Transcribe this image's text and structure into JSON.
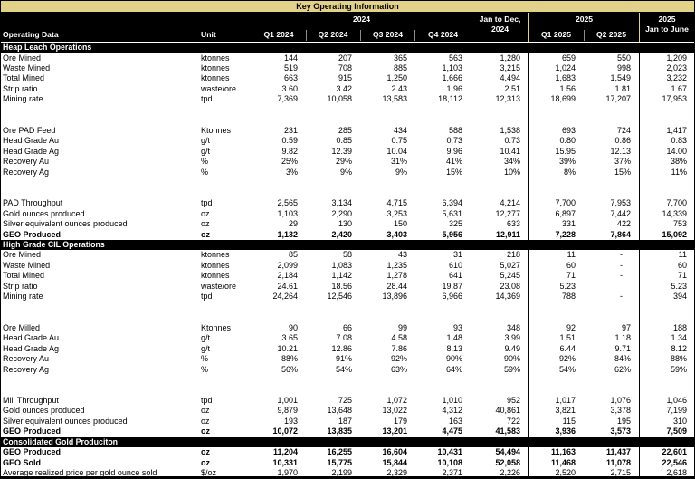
{
  "title": "Key Operating Information",
  "colors": {
    "accent_tan": "#e2d189",
    "header_bg": "#000000",
    "header_text": "#ffffff",
    "body_text": "#000000"
  },
  "header": {
    "operating_data_label": "Operating Data",
    "unit_label": "Unit",
    "group_2024": "2024",
    "group_2025": "2025",
    "jan_to_dec_lines": [
      "Jan to Dec,",
      "2024"
    ],
    "jan_to_june_lines": [
      "2025",
      "Jan to June"
    ],
    "quarters_2024": [
      "Q1 2024",
      "Q2 2024",
      "Q3 2024",
      "Q4 2024"
    ],
    "quarters_2025": [
      "Q1 2025",
      "Q2 2025"
    ]
  },
  "columns": [
    "Q1 2024",
    "Q2 2024",
    "Q3 2024",
    "Q4 2024",
    "Jan to Dec, 2024",
    "Q1 2025",
    "Q2 2025",
    "2025 Jan to June"
  ],
  "sections": [
    {
      "name": "Heap Leach Operations",
      "rows": [
        {
          "label": "Ore Mined",
          "unit": "ktonnes",
          "values": [
            "144",
            "207",
            "365",
            "563",
            "1,280",
            "659",
            "550",
            "1,209"
          ]
        },
        {
          "label": "Waste Mined",
          "unit": "ktonnes",
          "values": [
            "519",
            "708",
            "885",
            "1,103",
            "3,215",
            "1,024",
            "998",
            "2,023"
          ]
        },
        {
          "label": "Total Mined",
          "unit": "ktonnes",
          "values": [
            "663",
            "915",
            "1,250",
            "1,666",
            "4,494",
            "1,683",
            "1,549",
            "3,232"
          ]
        },
        {
          "label": "Strip ratio",
          "unit": "waste/ore",
          "values": [
            "3.60",
            "3.42",
            "2.43",
            "1.96",
            "2.51",
            "1.56",
            "1.81",
            "1.67"
          ]
        },
        {
          "label": "Mining rate",
          "unit": "tpd",
          "values": [
            "7,369",
            "10,058",
            "13,583",
            "18,112",
            "12,313",
            "18,699",
            "17,207",
            "17,953"
          ]
        },
        {
          "blank": true
        },
        {
          "blank": true
        },
        {
          "label": "Ore PAD Feed",
          "unit": "Ktonnes",
          "values": [
            "231",
            "285",
            "434",
            "588",
            "1,538",
            "693",
            "724",
            "1,417"
          ]
        },
        {
          "label": "Head Grade Au",
          "unit": "g/t",
          "values": [
            "0.59",
            "0.85",
            "0.75",
            "0.73",
            "0.73",
            "0.80",
            "0.86",
            "0.83"
          ]
        },
        {
          "label": "Head Grade Ag",
          "unit": "g/t",
          "values": [
            "9.82",
            "12.39",
            "10.04",
            "9.96",
            "10.41",
            "15.95",
            "12.13",
            "14.00"
          ]
        },
        {
          "label": "Recovery Au",
          "unit": "%",
          "values": [
            "25%",
            "29%",
            "31%",
            "41%",
            "34%",
            "39%",
            "37%",
            "38%"
          ]
        },
        {
          "label": "Recovery Ag",
          "unit": "%",
          "values": [
            "3%",
            "9%",
            "9%",
            "15%",
            "10%",
            "8%",
            "15%",
            "11%"
          ]
        },
        {
          "blank": true
        },
        {
          "blank": true
        },
        {
          "label": "PAD Throughput",
          "unit": "tpd",
          "values": [
            "2,565",
            "3,134",
            "4,715",
            "6,394",
            "4,214",
            "7,700",
            "7,953",
            "7,700"
          ]
        },
        {
          "label": "Gold ounces produced",
          "unit": "oz",
          "values": [
            "1,103",
            "2,290",
            "3,253",
            "5,631",
            "12,277",
            "6,897",
            "7,442",
            "14,339"
          ]
        },
        {
          "label": "Silver equivalent ounces produced",
          "unit": "oz",
          "values": [
            "29",
            "130",
            "150",
            "325",
            "633",
            "331",
            "422",
            "753"
          ]
        },
        {
          "label": "GEO Produced",
          "unit": "oz",
          "bold": true,
          "values": [
            "1,132",
            "2,420",
            "3,403",
            "5,956",
            "12,911",
            "7,228",
            "7,864",
            "15,092"
          ]
        }
      ]
    },
    {
      "name": "High Grade CIL Operations",
      "rows": [
        {
          "label": "Ore Mined",
          "unit": "ktonnes",
          "values": [
            "85",
            "58",
            "43",
            "31",
            "218",
            "11",
            "-",
            "11"
          ]
        },
        {
          "label": "Waste Mined",
          "unit": "ktonnes",
          "values": [
            "2,099",
            "1,083",
            "1,235",
            "610",
            "5,027",
            "60",
            "-",
            "60"
          ]
        },
        {
          "label": "Total Mined",
          "unit": "ktonnes",
          "values": [
            "2,184",
            "1,142",
            "1,278",
            "641",
            "5,245",
            "71",
            "-",
            "71"
          ]
        },
        {
          "label": "Strip ratio",
          "unit": "waste/ore",
          "values": [
            "24.61",
            "18.56",
            "28.44",
            "19.87",
            "23.08",
            "5.23",
            "",
            "5.23"
          ]
        },
        {
          "label": "Mining rate",
          "unit": "tpd",
          "values": [
            "24,264",
            "12,546",
            "13,896",
            "6,966",
            "14,369",
            "788",
            "-",
            "394"
          ]
        },
        {
          "blank": true
        },
        {
          "blank": true
        },
        {
          "label": "Ore Milled",
          "unit": "Ktonnes",
          "values": [
            "90",
            "66",
            "99",
            "93",
            "348",
            "92",
            "97",
            "188"
          ]
        },
        {
          "label": "Head Grade Au",
          "unit": "g/t",
          "values": [
            "3.65",
            "7.08",
            "4.58",
            "1.48",
            "3.99",
            "1.51",
            "1.18",
            "1.34"
          ]
        },
        {
          "label": "Head Grade Ag",
          "unit": "g/t",
          "values": [
            "10.21",
            "12.86",
            "7.86",
            "8.13",
            "9.49",
            "6.44",
            "9.71",
            "8.12"
          ]
        },
        {
          "label": "Recovery Au",
          "unit": "%",
          "values": [
            "88%",
            "91%",
            "92%",
            "90%",
            "90%",
            "92%",
            "84%",
            "88%"
          ]
        },
        {
          "label": "Recovery Ag",
          "unit": "%",
          "values": [
            "56%",
            "54%",
            "63%",
            "64%",
            "59%",
            "54%",
            "62%",
            "59%"
          ]
        },
        {
          "blank": true
        },
        {
          "blank": true
        },
        {
          "label": "Mill Throughput",
          "unit": "tpd",
          "values": [
            "1,001",
            "725",
            "1,072",
            "1,010",
            "952",
            "1,017",
            "1,076",
            "1,046"
          ]
        },
        {
          "label": "Gold ounces produced",
          "unit": "oz",
          "values": [
            "9,879",
            "13,648",
            "13,022",
            "4,312",
            "40,861",
            "3,821",
            "3,378",
            "7,199"
          ]
        },
        {
          "label": "Silver equivalent ounces produced",
          "unit": "oz",
          "values": [
            "193",
            "187",
            "179",
            "163",
            "722",
            "115",
            "195",
            "310"
          ]
        },
        {
          "label": "GEO Produced",
          "unit": "oz",
          "bold": true,
          "values": [
            "10,072",
            "13,835",
            "13,201",
            "4,475",
            "41,583",
            "3,936",
            "3,573",
            "7,509"
          ]
        }
      ]
    },
    {
      "name": "Consolidated Gold Produciton",
      "rows": [
        {
          "label": "GEO Produced",
          "unit": "oz",
          "bold": true,
          "values": [
            "11,204",
            "16,255",
            "16,604",
            "10,431",
            "54,494",
            "11,163",
            "11,437",
            "22,601"
          ]
        },
        {
          "label": "GEO Sold",
          "unit": "oz",
          "bold": true,
          "values": [
            "10,331",
            "15,775",
            "15,844",
            "10,108",
            "52,058",
            "11,468",
            "11,078",
            "22,546"
          ]
        },
        {
          "label": "Average realized price per gold ounce sold",
          "unit": "$/oz",
          "values": [
            "1,970",
            "2,199",
            "2,329",
            "2,371",
            "2,226",
            "2,520",
            "2,715",
            "2,618"
          ]
        }
      ]
    }
  ]
}
